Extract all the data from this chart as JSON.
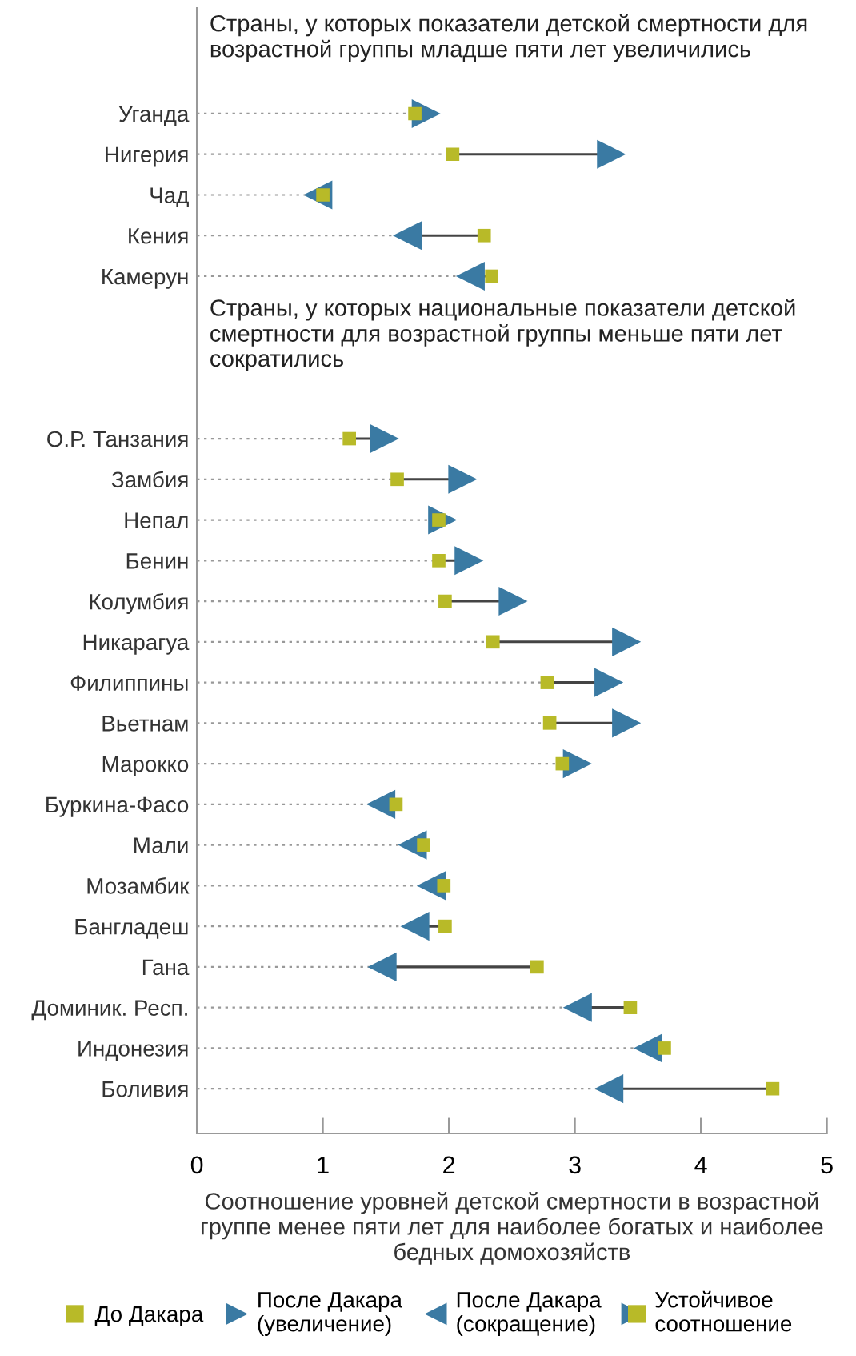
{
  "chart_data": {
    "type": "scatter",
    "orientation": "horizontal",
    "annotations": [
      "Страны, у которых показатели детской смертности для возрастной группы младше пяти лет увеличились",
      "Страны, у которых национальные показатели детской смертности для возрастной группы меньше пяти лет сократились"
    ],
    "categories": [
      null,
      null,
      "Уганда",
      "Нигерия",
      "Чад",
      "Кения",
      "Камерун",
      null,
      null,
      null,
      "О.Р. Танзания",
      "Замбия",
      "Непал",
      "Бенин",
      "Колумбия",
      "Никарагуа",
      "Филиппины",
      "Вьетнам",
      "Марокко",
      "Буркина-Фасо",
      "Мали",
      "Мозамбик",
      "Бангладеш",
      "Гана",
      "Доминик. Респ.",
      "Индонезия",
      "Боливия"
    ],
    "xlabel": "Соотношение уровней детской смертности в возрастной группе менее пяти лет для наиболее богатых и наиболее бедных домохозяйств",
    "xlim": [
      0,
      5
    ],
    "xticks": [
      0,
      1,
      2,
      3,
      4,
      5
    ],
    "grid": "y",
    "legend": "bottom",
    "series": [
      {
        "name": "До Дакара",
        "color": "#b8ba28",
        "marker": "square",
        "values": [
          null,
          null,
          1.73,
          2.03,
          1.0,
          2.28,
          2.34,
          null,
          null,
          null,
          1.21,
          1.59,
          1.92,
          1.92,
          1.97,
          2.35,
          2.78,
          2.8,
          2.9,
          1.58,
          1.8,
          1.96,
          1.97,
          2.7,
          3.44,
          3.71,
          4.57
        ]
      },
      {
        "name": "После Дакара\n(увеличение)",
        "color": "#3a7aa3",
        "marker": "triangle",
        "values": [
          null,
          null,
          1.82,
          3.29,
          null,
          null,
          null,
          null,
          null,
          null,
          1.49,
          2.11,
          1.95,
          2.16,
          2.51,
          3.41,
          3.27,
          3.41,
          3.02,
          null,
          null,
          null,
          null,
          null,
          null,
          null,
          null
        ]
      },
      {
        "name": "После Дакара\n(сокращение)",
        "color": "#3a7aa3",
        "marker": "triangle",
        "values": [
          null,
          null,
          null,
          null,
          0.96,
          1.67,
          2.17,
          null,
          null,
          null,
          null,
          null,
          null,
          null,
          null,
          null,
          null,
          null,
          null,
          1.46,
          1.71,
          1.86,
          1.73,
          1.47,
          3.02,
          3.58,
          3.27
        ]
      },
      {
        "name": "Устойчивое\nсоотношение",
        "color": "#3a7aa3",
        "marker": "triangle",
        "values": [
          null,
          null,
          null,
          null,
          null,
          null,
          null,
          null,
          null,
          null,
          null,
          null,
          null,
          null,
          null,
          null,
          null,
          null,
          null,
          null,
          null,
          null,
          null,
          null,
          null,
          null,
          null
        ]
      }
    ]
  }
}
